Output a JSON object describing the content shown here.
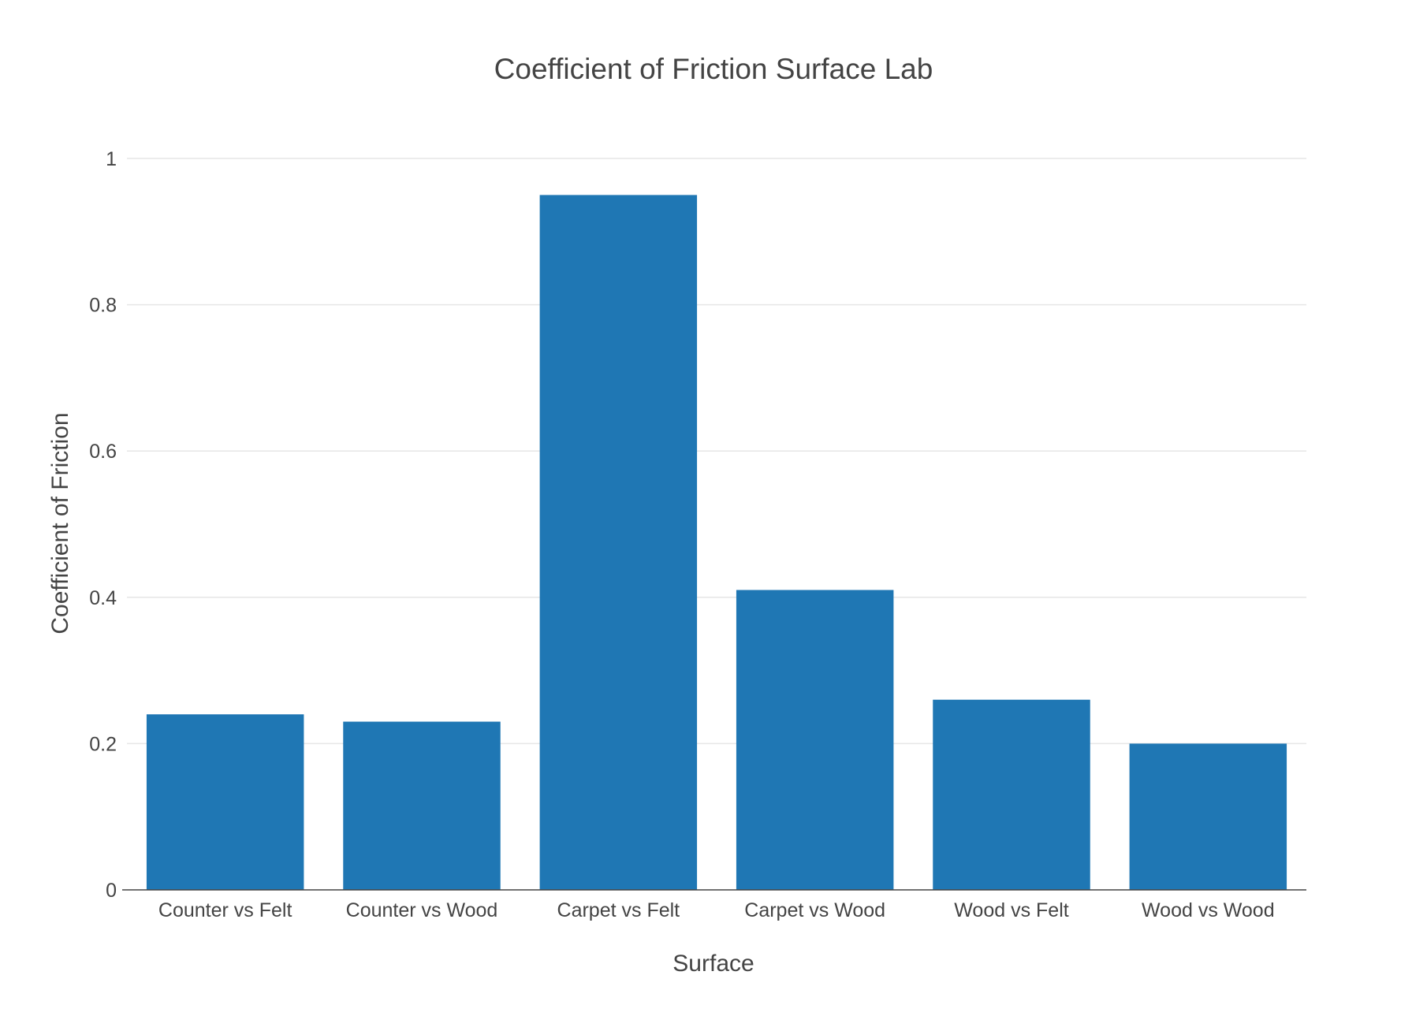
{
  "colors": {
    "bar": "#1f77b4",
    "text": "#444444",
    "grid": "#e6e6e6",
    "axis_line": "#444444"
  },
  "chart_data": {
    "type": "bar",
    "title": "Coefficient of Friction Surface Lab",
    "xlabel": "Surface",
    "ylabel": "Coefficient of Friction",
    "categories": [
      "Counter vs Felt",
      "Counter vs Wood",
      "Carpet vs Felt",
      "Carpet vs Wood",
      "Wood vs Felt",
      "Wood vs Wood"
    ],
    "values": [
      0.24,
      0.23,
      0.95,
      0.41,
      0.26,
      0.2
    ],
    "ylim": [
      0,
      1
    ],
    "yticks": [
      0,
      0.2,
      0.4,
      0.6,
      0.8,
      1
    ],
    "ytick_labels": [
      "0",
      "0.2",
      "0.4",
      "0.6",
      "0.8",
      "1"
    ],
    "grid": true,
    "legend": "none"
  }
}
